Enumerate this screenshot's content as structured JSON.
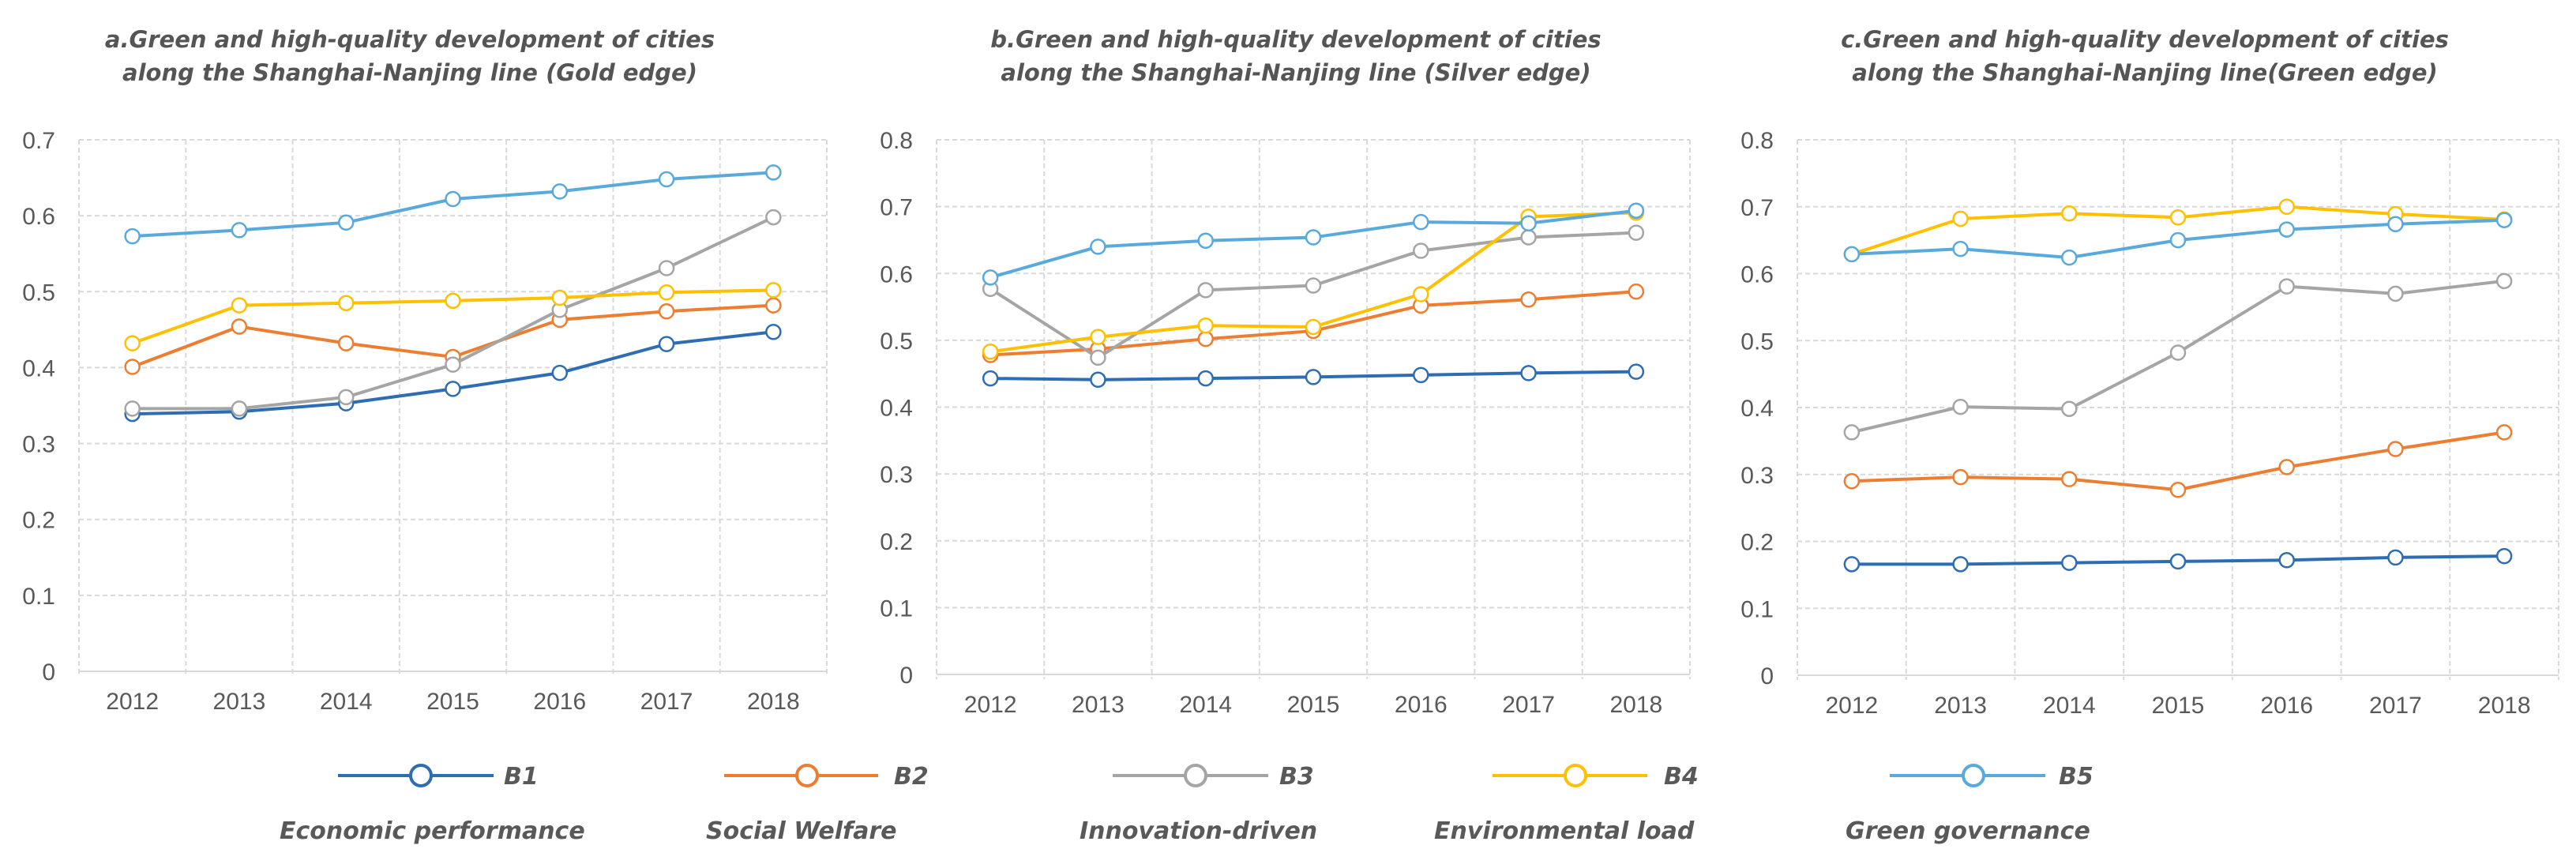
{
  "legend": [
    {
      "key": "B1",
      "label": "Economic performance",
      "color": "#2E6DB4"
    },
    {
      "key": "B2",
      "label": "Social Welfare",
      "color": "#ED7D31"
    },
    {
      "key": "B3",
      "label": "Innovation-driven",
      "color": "#A5A5A5"
    },
    {
      "key": "B4",
      "label": "Environmental load",
      "color": "#FFC000"
    },
    {
      "key": "B5",
      "label": "Green governance",
      "color": "#5AA9DD"
    }
  ],
  "chart_data": [
    {
      "type": "line",
      "title": [
        "a.Green and high-quality development of cities",
        "along the Shanghai-Nanjing line (Gold edge)"
      ],
      "categories": [
        "2012",
        "2013",
        "2014",
        "2015",
        "2016",
        "2017",
        "2018"
      ],
      "ylim": [
        0,
        0.7
      ],
      "yticks": [
        "0",
        "0.1",
        "0.2",
        "0.3",
        "0.4",
        "0.5",
        "0.6",
        "0.7"
      ],
      "grid": true,
      "series": [
        {
          "name": "B1",
          "values": [
            0.339,
            0.342,
            0.353,
            0.372,
            0.393,
            0.431,
            0.447
          ]
        },
        {
          "name": "B2",
          "values": [
            0.401,
            0.454,
            0.432,
            0.414,
            0.463,
            0.474,
            0.482
          ]
        },
        {
          "name": "B3",
          "values": [
            0.346,
            0.346,
            0.361,
            0.404,
            0.476,
            0.531,
            0.598
          ]
        },
        {
          "name": "B4",
          "values": [
            0.432,
            0.482,
            0.485,
            0.488,
            0.492,
            0.499,
            0.502
          ]
        },
        {
          "name": "B5",
          "values": [
            0.573,
            0.581,
            0.591,
            0.622,
            0.632,
            0.648,
            0.657
          ]
        }
      ]
    },
    {
      "type": "line",
      "title": [
        "b.Green and high-quality development of cities",
        "along the Shanghai-Nanjing line (Silver edge)"
      ],
      "categories": [
        "2012",
        "2013",
        "2014",
        "2015",
        "2016",
        "2017",
        "2018"
      ],
      "ylim": [
        0,
        0.8
      ],
      "yticks": [
        "0",
        "0.1",
        "0.2",
        "0.3",
        "0.4",
        "0.5",
        "0.6",
        "0.7",
        "0.8"
      ],
      "grid": true,
      "series": [
        {
          "name": "B1",
          "values": [
            0.443,
            0.441,
            0.443,
            0.445,
            0.448,
            0.451,
            0.453
          ]
        },
        {
          "name": "B2",
          "values": [
            0.478,
            0.487,
            0.502,
            0.514,
            0.552,
            0.561,
            0.573
          ]
        },
        {
          "name": "B3",
          "values": [
            0.577,
            0.474,
            0.575,
            0.582,
            0.634,
            0.654,
            0.661
          ]
        },
        {
          "name": "B4",
          "values": [
            0.483,
            0.505,
            0.522,
            0.52,
            0.569,
            0.685,
            0.691
          ]
        },
        {
          "name": "B5",
          "values": [
            0.594,
            0.64,
            0.649,
            0.654,
            0.677,
            0.675,
            0.694
          ]
        }
      ]
    },
    {
      "type": "line",
      "title": [
        "c.Green and high-quality development of cities",
        "along the Shanghai-Nanjing line(Green edge)"
      ],
      "categories": [
        "2012",
        "2013",
        "2014",
        "2015",
        "2016",
        "2017",
        "2018"
      ],
      "ylim": [
        0,
        0.8
      ],
      "yticks": [
        "0",
        "0.1",
        "0.2",
        "0.3",
        "0.4",
        "0.5",
        "0.6",
        "0.7",
        "0.8"
      ],
      "grid": true,
      "series": [
        {
          "name": "B1",
          "values": [
            0.166,
            0.166,
            0.168,
            0.17,
            0.172,
            0.176,
            0.178
          ]
        },
        {
          "name": "B2",
          "values": [
            0.29,
            0.296,
            0.293,
            0.277,
            0.311,
            0.338,
            0.363
          ]
        },
        {
          "name": "B3",
          "values": [
            0.363,
            0.401,
            0.398,
            0.482,
            0.581,
            0.57,
            0.589
          ]
        },
        {
          "name": "B4",
          "values": [
            0.629,
            0.682,
            0.69,
            0.684,
            0.7,
            0.689,
            0.681
          ]
        },
        {
          "name": "B5",
          "values": [
            0.629,
            0.637,
            0.624,
            0.65,
            0.666,
            0.674,
            0.68
          ]
        }
      ]
    }
  ]
}
